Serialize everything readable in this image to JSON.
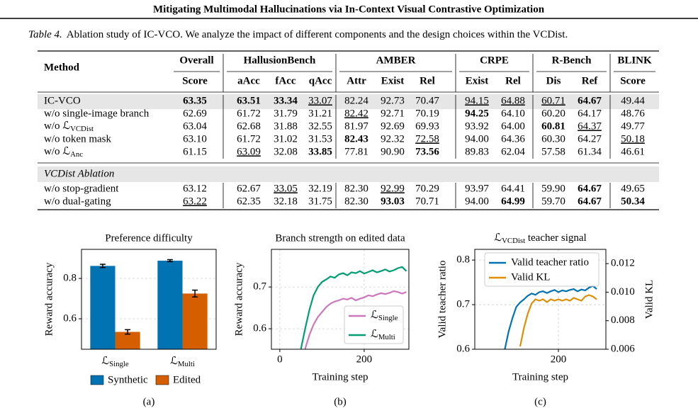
{
  "header": {
    "title": "Mitigating Multimodal Hallucinations via In-Context Visual Contrastive Optimization"
  },
  "table": {
    "caption_label": "Table 4.",
    "caption": "Ablation study of IC-VCO. We analyze the impact of different components and the design choices within the VCDist.",
    "method_header": "Method",
    "groups": [
      {
        "name": "Overall",
        "columns": [
          "Score"
        ]
      },
      {
        "name": "HallusionBench",
        "columns": [
          "aAcc",
          "fAcc",
          "qAcc"
        ]
      },
      {
        "name": "AMBER",
        "columns": [
          "Attr",
          "Exist",
          "Rel"
        ]
      },
      {
        "name": "CRPE",
        "columns": [
          "Exist",
          "Rel"
        ]
      },
      {
        "name": "R-Bench",
        "columns": [
          "Dis",
          "Ref"
        ]
      },
      {
        "name": "BLINK",
        "columns": [
          "Score"
        ]
      }
    ],
    "sections": [
      {
        "rows": [
          {
            "method": "IC-VCO",
            "highlight": true,
            "cells": [
              "63.35",
              "63.51",
              "33.34",
              "33.07",
              "82.24",
              "92.73",
              "70.47",
              "94.15",
              "64.88",
              "60.71",
              "64.67",
              "49.44"
            ],
            "styles": [
              "b",
              "b",
              "b",
              "u",
              null,
              null,
              null,
              "u",
              "u",
              "u",
              "b",
              null
            ]
          },
          {
            "method": "w/o single-image branch",
            "cells": [
              "62.69",
              "61.72",
              "31.79",
              "31.21",
              "82.42",
              "92.71",
              "70.19",
              "94.25",
              "64.10",
              "60.20",
              "64.17",
              "48.76"
            ],
            "styles": [
              null,
              null,
              null,
              null,
              "u",
              null,
              null,
              "b",
              null,
              null,
              null,
              null
            ]
          },
          {
            "method": {
              "base": "w/o ℒ",
              "sub": "VCDist"
            },
            "cells": [
              "63.04",
              "62.68",
              "31.88",
              "32.55",
              "81.97",
              "92.69",
              "69.93",
              "93.92",
              "64.00",
              "60.81",
              "64.37",
              "49.77"
            ],
            "styles": [
              null,
              null,
              null,
              null,
              null,
              null,
              null,
              null,
              null,
              "b",
              "u",
              null
            ]
          },
          {
            "method": "w/o token mask",
            "cells": [
              "63.10",
              "61.72",
              "31.02",
              "31.53",
              "82.43",
              "92.32",
              "72.58",
              "94.00",
              "64.36",
              "60.30",
              "64.27",
              "50.18"
            ],
            "styles": [
              null,
              null,
              null,
              null,
              "b",
              null,
              "u",
              null,
              null,
              null,
              null,
              "u"
            ]
          },
          {
            "method": {
              "base": "w/o ℒ",
              "sub": "Anc"
            },
            "cells": [
              "61.15",
              "63.09",
              "32.08",
              "33.85",
              "77.81",
              "90.90",
              "73.56",
              "89.83",
              "62.04",
              "57.58",
              "61.34",
              "46.61"
            ],
            "styles": [
              null,
              "u",
              null,
              "b",
              null,
              null,
              "b",
              null,
              null,
              null,
              null,
              null
            ]
          }
        ]
      },
      {
        "title": "VCDist Ablation",
        "rows": [
          {
            "method": "w/o stop-gradient",
            "cells": [
              "63.12",
              "62.67",
              "33.05",
              "32.19",
              "82.30",
              "92.99",
              "70.29",
              "93.97",
              "64.41",
              "59.90",
              "64.67",
              "49.65"
            ],
            "styles": [
              null,
              null,
              "u",
              null,
              null,
              "u",
              null,
              null,
              null,
              null,
              "b",
              null
            ]
          },
          {
            "method": "w/o dual-gating",
            "cells": [
              "63.22",
              "62.35",
              "32.18",
              "31.75",
              "82.30",
              "93.03",
              "70.71",
              "94.00",
              "64.99",
              "59.70",
              "64.67",
              "50.34"
            ],
            "styles": [
              "u",
              null,
              null,
              null,
              null,
              "b",
              null,
              null,
              "b",
              null,
              "b",
              "b"
            ]
          }
        ]
      }
    ]
  },
  "chart_data": [
    {
      "type": "bar",
      "title": "Preference difficulty",
      "label": "(a)",
      "y_label": "Reward accuracy",
      "categories": [
        {
          "base": "ℒ",
          "sub": "Single"
        },
        {
          "base": "ℒ",
          "sub": "Multi"
        }
      ],
      "series": [
        {
          "name": "Synthetic",
          "color": "#0173b2",
          "values": [
            0.862,
            0.888
          ],
          "errors": [
            0.008,
            0.005
          ]
        },
        {
          "name": "Edited",
          "color": "#d55e00",
          "values": [
            0.535,
            0.725
          ],
          "errors": [
            0.011,
            0.017
          ]
        }
      ],
      "ylim": [
        0.449,
        0.944
      ],
      "yticks": [
        0.6,
        0.8
      ],
      "grid": true,
      "legend": "below"
    },
    {
      "type": "line",
      "title": "Branch strength on edited data",
      "label": "(b)",
      "y_label": "Reward accuracy",
      "x_label": "Training step",
      "x": [
        50,
        60,
        70,
        80,
        90,
        100,
        110,
        120,
        130,
        140,
        150,
        160,
        170,
        180,
        190,
        200,
        210,
        220,
        230,
        240,
        250,
        260,
        270,
        280,
        290,
        300
      ],
      "series": [
        {
          "name": {
            "base": "ℒ",
            "sub": "Single"
          },
          "color": "#cc78bc",
          "values": [
            null,
            0.552,
            0.585,
            0.61,
            0.628,
            0.64,
            0.652,
            0.66,
            0.665,
            0.668,
            0.672,
            0.67,
            0.674,
            0.668,
            0.672,
            0.675,
            0.68,
            0.678,
            0.682,
            0.685,
            0.683,
            0.686,
            0.69,
            0.688,
            0.684,
            0.688
          ]
        },
        {
          "name": {
            "base": "ℒ",
            "sub": "Multi"
          },
          "color": "#029e73",
          "values": [
            0.552,
            0.6,
            0.645,
            0.68,
            0.7,
            0.712,
            0.718,
            0.725,
            0.722,
            0.73,
            0.733,
            0.728,
            0.735,
            0.733,
            0.738,
            0.732,
            0.736,
            0.74,
            0.735,
            0.738,
            0.742,
            0.737,
            0.74,
            0.745,
            0.748,
            0.738
          ]
        }
      ],
      "xlim": [
        -20,
        306
      ],
      "xticks": [
        0,
        200
      ],
      "ylim": [
        0.551,
        0.79
      ],
      "yticks": [
        0.6,
        0.7
      ],
      "grid": true,
      "legend": "lower right"
    },
    {
      "type": "line",
      "title": {
        "base": "ℒ",
        "sub": "VCDist",
        "rest": " teacher signal"
      },
      "label": "(c)",
      "y_label": "Valid teacher ratio",
      "y2_label": "Valid KL",
      "x_label": "Training step",
      "x": [
        60,
        70,
        80,
        90,
        100,
        110,
        120,
        130,
        140,
        150,
        160,
        170,
        180,
        190,
        200,
        210,
        220,
        230,
        240,
        250,
        260,
        270,
        280,
        290,
        300
      ],
      "series": [
        {
          "name": "Valid teacher ratio",
          "color": "#0173b2",
          "values": [
            0.6,
            0.64,
            0.67,
            0.695,
            0.705,
            0.712,
            0.72,
            0.725,
            0.722,
            0.728,
            0.73,
            0.726,
            0.73,
            0.733,
            0.728,
            0.732,
            0.73,
            0.733,
            0.735,
            0.73,
            0.734,
            0.732,
            0.738,
            0.742,
            0.735
          ]
        },
        {
          "name": "Valid KL",
          "color": "#de8f05",
          "axis": "y2",
          "values": [
            null,
            null,
            null,
            null,
            0.0062,
            0.0075,
            0.0085,
            0.0092,
            0.0095,
            0.0094,
            0.0095,
            0.0093,
            0.0095,
            0.0094,
            0.0095,
            0.0094,
            0.0095,
            0.0094,
            0.0096,
            0.0095,
            0.0094,
            0.0097,
            0.0098,
            0.0097,
            0.0095
          ]
        }
      ],
      "xlim": [
        -18.5,
        324
      ],
      "xticks": [
        200
      ],
      "ylim": [
        0.6,
        0.824
      ],
      "yticks": [
        0.6,
        0.7,
        0.8
      ],
      "y2lim": [
        0.006,
        0.013
      ],
      "y2ticks": [
        0.006,
        0.008,
        {
          "value": 0.01,
          "label": "0.010"
        },
        0.012
      ],
      "grid": true,
      "legend": "upper left"
    }
  ]
}
